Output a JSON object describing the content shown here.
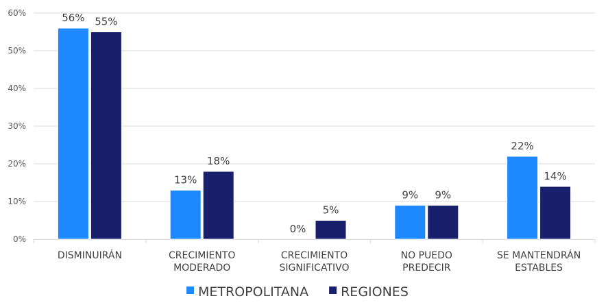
{
  "chart_data": {
    "type": "bar",
    "categories": [
      [
        "DISMINUIRÁN"
      ],
      [
        "CRECIMIENTO",
        "MODERADO"
      ],
      [
        "CRECIMIENTO",
        "SIGNIFICATIVO"
      ],
      [
        "NO PUEDO",
        "PREDECIR"
      ],
      [
        "SE MANTENDRÁN",
        "ESTABLES"
      ]
    ],
    "series": [
      {
        "name": "METROPOLITANA",
        "color": "#1E88FF",
        "values": [
          56,
          13,
          0,
          9,
          22
        ]
      },
      {
        "name": "REGIONES",
        "color": "#19206B",
        "values": [
          55,
          18,
          5,
          9,
          14
        ]
      }
    ],
    "ylim": [
      0,
      60
    ],
    "yticks": [
      0,
      10,
      20,
      30,
      40,
      50,
      60
    ],
    "ytick_format": "%",
    "grid": true,
    "legend": "bottom",
    "data_labels": true
  }
}
